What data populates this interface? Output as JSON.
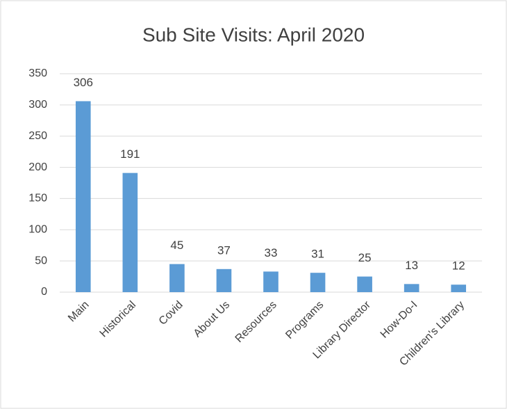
{
  "chart_data": {
    "type": "bar",
    "title": "Sub Site Visits: April 2020",
    "categories": [
      "Main",
      "Historical",
      "Covid",
      "About Us",
      "Resources",
      "Programs",
      "Library Director",
      "How-Do-I",
      "Children's Library"
    ],
    "values": [
      306,
      191,
      45,
      37,
      33,
      31,
      25,
      13,
      12
    ],
    "color": "#5b9bd5",
    "ylim": [
      0,
      350
    ],
    "yticks": [
      0,
      50,
      100,
      150,
      200,
      250,
      300,
      350
    ],
    "grid": true
  }
}
